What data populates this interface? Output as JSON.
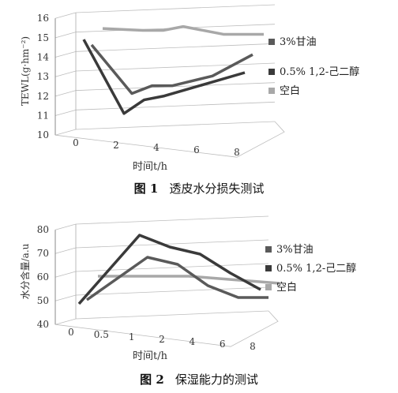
{
  "chart_data": [
    {
      "type": "line",
      "caption_num": "图 1",
      "caption_text": "透皮水分损失测试",
      "ylabel": "TEWL(g·hm⁻²)",
      "xlabel": "时间t/h",
      "y_ticks": [
        "10",
        "11",
        "12",
        "13",
        "14",
        "15",
        "16"
      ],
      "ylim": [
        10,
        16
      ],
      "x_ticks": [
        "0",
        "2",
        "4",
        "6",
        "8"
      ],
      "x_positions": [
        0,
        2,
        4,
        6,
        8
      ],
      "series": [
        {
          "name": "3%甘油",
          "color": "#5a5a5a",
          "x": [
            0,
            2,
            3,
            4,
            6,
            8
          ],
          "values": [
            14.1,
            11.6,
            12.0,
            12.0,
            12.5,
            13.6
          ]
        },
        {
          "name": "0.5% 1,2-己二醇",
          "color": "#3a3a3a",
          "x": [
            0,
            2,
            3,
            4,
            6,
            8
          ],
          "values": [
            14.7,
            10.9,
            11.6,
            11.8,
            12.4,
            13.0
          ]
        },
        {
          "name": "空白",
          "color": "#a8a8a8",
          "x": [
            0,
            2,
            3,
            4,
            6,
            8
          ],
          "values": [
            14.7,
            14.6,
            14.6,
            14.8,
            14.4,
            14.4
          ]
        }
      ],
      "legend_position": "right"
    },
    {
      "type": "line",
      "caption_num": "图 2",
      "caption_text": "保湿能力的测试",
      "ylabel": "水分含量/a.u",
      "xlabel": "时间t/h",
      "y_ticks": [
        "40",
        "50",
        "60",
        "70",
        "80"
      ],
      "ylim": [
        40,
        80
      ],
      "x_ticks": [
        "0",
        "0.5",
        "1",
        "2",
        "4",
        "6",
        "8"
      ],
      "x_positions": [
        0,
        0.5,
        1,
        2,
        4,
        6,
        8
      ],
      "series": [
        {
          "name": "3%甘油",
          "color": "#5a5a5a",
          "x": [
            0,
            1,
            2,
            4,
            6,
            8
          ],
          "values": [
            46,
            64,
            61,
            52,
            47,
            47
          ]
        },
        {
          "name": "0.5% 1,2-己二醇",
          "color": "#3a3a3a",
          "x": [
            0,
            1,
            2,
            4,
            6,
            8
          ],
          "values": [
            47,
            76,
            71,
            68,
            60,
            53
          ]
        },
        {
          "name": "空白",
          "color": "#a8a8a8",
          "x": [
            0,
            1,
            2,
            4,
            6,
            8
          ],
          "values": [
            54,
            54,
            54,
            53,
            52,
            51
          ]
        }
      ],
      "legend_position": "right"
    }
  ]
}
